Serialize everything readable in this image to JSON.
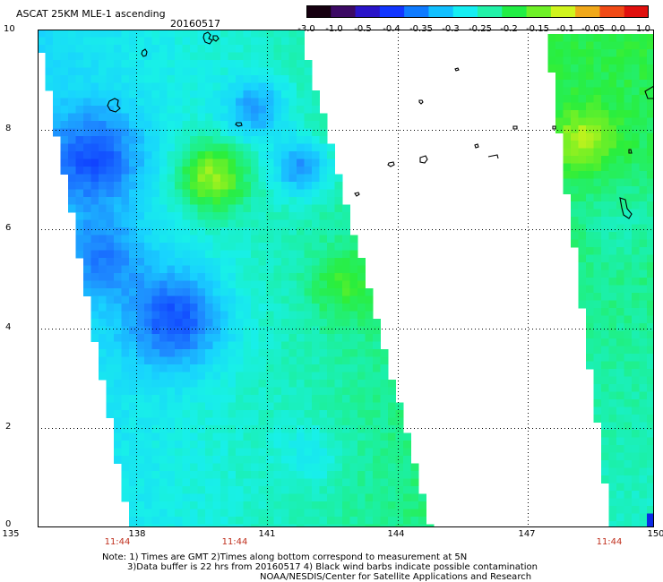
{
  "header": {
    "title": "ASCAT 25KM MLE-1 ascending",
    "date": "20160517"
  },
  "colorbar": {
    "labels": [
      "-3.0",
      "-1.0",
      "-0.5",
      "-0.4",
      "-0.35",
      "-0.3",
      "-0.25",
      "-0.2",
      "-0.15",
      "-0.1",
      "-0.05",
      "0.0",
      "1.0"
    ],
    "colors": [
      "#160010",
      "#3c0a64",
      "#2a14c8",
      "#1236ff",
      "#0f7bff",
      "#12c0ff",
      "#16eef2",
      "#22f2a8",
      "#22ee44",
      "#6ef028",
      "#d0f41e",
      "#f0a81a",
      "#f04a16",
      "#e0100e"
    ]
  },
  "axes": {
    "lon_ticks": [
      "135",
      "138",
      "141",
      "144",
      "147",
      "150"
    ],
    "lat_ticks": [
      "10",
      "8",
      "6",
      "4",
      "2",
      "0"
    ],
    "time_labels": [
      "11:44",
      "11:44",
      "11:44"
    ]
  },
  "notes": {
    "line1": "Note: 1) Times are GMT 2)Times along bottom correspond to measurement at 5N",
    "line2": "3)Data buffer is 22 hrs from 20160517 4) Black wind barbs indicate possible contamination",
    "line3": "NOAA/NESDIS/Center for Satellite Applications and Research"
  }
}
